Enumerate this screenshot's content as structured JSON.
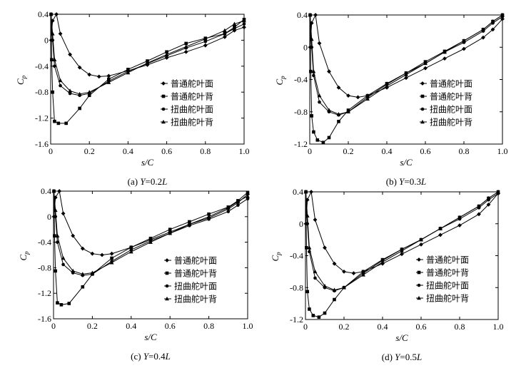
{
  "chart_data": [
    {
      "type": "line",
      "caption": "(a) Y=0.2L",
      "xlabel": "s/C",
      "ylabel": "C_p",
      "xlim": [
        0,
        1
      ],
      "ylim": [
        -1.6,
        0.4
      ],
      "xticks": [
        "0",
        "0.2",
        "0.4",
        "0.6",
        "0.8",
        "1.0"
      ],
      "yticks": [
        "0.4",
        "0",
        "-0.4",
        "-0.8",
        "-1.2",
        "-1.6"
      ],
      "legend_position": "center-right",
      "series": [
        {
          "name": "普通舵叶面",
          "marker": "diamond",
          "x": [
            0.002,
            0.01,
            0.03,
            0.05,
            0.1,
            0.15,
            0.2,
            0.25,
            0.3,
            0.4,
            0.5,
            0.6,
            0.7,
            0.8,
            0.9,
            0.95,
            1.0
          ],
          "y": [
            0.0,
            0.3,
            0.4,
            0.1,
            -0.22,
            -0.42,
            -0.53,
            -0.56,
            -0.55,
            -0.47,
            -0.38,
            -0.27,
            -0.18,
            -0.08,
            0.05,
            0.15,
            0.2
          ]
        },
        {
          "name": "普通舵叶背",
          "marker": "square",
          "x": [
            0.002,
            0.005,
            0.01,
            0.02,
            0.04,
            0.08,
            0.15,
            0.2,
            0.3,
            0.4,
            0.5,
            0.6,
            0.7,
            0.8,
            0.9,
            0.95,
            1.0
          ],
          "y": [
            0.4,
            -0.3,
            -0.8,
            -1.25,
            -1.28,
            -1.28,
            -1.05,
            -0.85,
            -0.6,
            -0.45,
            -0.32,
            -0.18,
            -0.05,
            0.03,
            0.1,
            0.2,
            0.32
          ]
        },
        {
          "name": "扭曲舵叶面",
          "marker": "circle",
          "x": [
            0.002,
            0.01,
            0.02,
            0.05,
            0.1,
            0.15,
            0.2,
            0.3,
            0.4,
            0.5,
            0.6,
            0.7,
            0.8,
            0.9,
            0.95,
            1.0
          ],
          "y": [
            0.4,
            0.0,
            -0.4,
            -0.7,
            -0.82,
            -0.85,
            -0.82,
            -0.63,
            -0.48,
            -0.36,
            -0.24,
            -0.12,
            -0.02,
            0.1,
            0.18,
            0.25
          ]
        },
        {
          "name": "扭曲舵叶背",
          "marker": "triangle",
          "x": [
            0.002,
            0.01,
            0.02,
            0.05,
            0.1,
            0.15,
            0.2,
            0.3,
            0.4,
            0.5,
            0.6,
            0.7,
            0.8,
            0.9,
            0.95,
            1.0
          ],
          "y": [
            0.4,
            0.1,
            -0.3,
            -0.62,
            -0.78,
            -0.83,
            -0.8,
            -0.65,
            -0.5,
            -0.35,
            -0.22,
            -0.1,
            0.02,
            0.15,
            0.25,
            0.3
          ]
        }
      ]
    },
    {
      "type": "line",
      "caption": "(b) Y=0.3L",
      "xlabel": "s/C",
      "ylabel": "C_p",
      "xlim": [
        0,
        1
      ],
      "ylim": [
        -1.2,
        0.4
      ],
      "xticks": [
        "0",
        "0.2",
        "0.4",
        "0.6",
        "0.8",
        "1.0"
      ],
      "yticks": [
        "0.4",
        "0",
        "-0.4",
        "-0.8",
        "-1.2"
      ],
      "legend_position": "center-right",
      "series": [
        {
          "name": "普通舵叶面",
          "marker": "diamond",
          "x": [
            0.002,
            0.01,
            0.03,
            0.05,
            0.1,
            0.15,
            0.2,
            0.25,
            0.3,
            0.4,
            0.5,
            0.6,
            0.7,
            0.8,
            0.9,
            0.95,
            1.0
          ],
          "y": [
            0.0,
            0.3,
            0.4,
            0.05,
            -0.3,
            -0.5,
            -0.6,
            -0.62,
            -0.6,
            -0.5,
            -0.38,
            -0.26,
            -0.14,
            -0.02,
            0.12,
            0.22,
            0.35
          ]
        },
        {
          "name": "普通舵叶背",
          "marker": "square",
          "x": [
            0.002,
            0.005,
            0.01,
            0.02,
            0.04,
            0.07,
            0.1,
            0.15,
            0.2,
            0.3,
            0.4,
            0.5,
            0.6,
            0.7,
            0.8,
            0.9,
            0.95,
            1.0
          ],
          "y": [
            0.4,
            -0.3,
            -0.85,
            -1.05,
            -1.15,
            -1.18,
            -1.12,
            -0.92,
            -0.78,
            -0.6,
            -0.45,
            -0.32,
            -0.18,
            -0.05,
            0.08,
            0.22,
            0.32,
            0.4
          ]
        },
        {
          "name": "扭曲舵叶面",
          "marker": "circle",
          "x": [
            0.002,
            0.01,
            0.02,
            0.05,
            0.1,
            0.15,
            0.2,
            0.3,
            0.4,
            0.5,
            0.6,
            0.7,
            0.8,
            0.9,
            0.95,
            1.0
          ],
          "y": [
            0.4,
            0.0,
            -0.35,
            -0.68,
            -0.8,
            -0.84,
            -0.8,
            -0.62,
            -0.46,
            -0.32,
            -0.2,
            -0.06,
            0.06,
            0.2,
            0.3,
            0.38
          ]
        },
        {
          "name": "扭曲舵叶背",
          "marker": "triangle",
          "x": [
            0.002,
            0.01,
            0.02,
            0.05,
            0.1,
            0.15,
            0.2,
            0.3,
            0.4,
            0.5,
            0.6,
            0.7,
            0.8,
            0.9,
            0.95,
            1.0
          ],
          "y": [
            0.4,
            0.1,
            -0.3,
            -0.6,
            -0.78,
            -0.83,
            -0.8,
            -0.64,
            -0.48,
            -0.34,
            -0.2,
            -0.06,
            0.08,
            0.22,
            0.32,
            0.4
          ]
        }
      ]
    },
    {
      "type": "line",
      "caption": "(c) Y=0.4L",
      "xlabel": "s/C",
      "ylabel": "C_p",
      "xlim": [
        0,
        1
      ],
      "ylim": [
        -1.6,
        0.4
      ],
      "xticks": [
        "0",
        "0.2",
        "0.4",
        "0.6",
        "0.8",
        "1.0"
      ],
      "yticks": [
        "0.4",
        "0",
        "-0.4",
        "-0.8",
        "-1.2",
        "-1.6"
      ],
      "legend_position": "center-right",
      "series": [
        {
          "name": "普通舵叶面",
          "marker": "diamond",
          "x": [
            0.002,
            0.01,
            0.03,
            0.05,
            0.1,
            0.15,
            0.2,
            0.25,
            0.3,
            0.4,
            0.5,
            0.6,
            0.7,
            0.8,
            0.9,
            0.95,
            1.0
          ],
          "y": [
            0.0,
            0.3,
            0.4,
            0.05,
            -0.3,
            -0.5,
            -0.58,
            -0.6,
            -0.58,
            -0.48,
            -0.36,
            -0.24,
            -0.12,
            -0.02,
            0.12,
            0.22,
            0.35
          ]
        },
        {
          "name": "普通舵叶背",
          "marker": "square",
          "x": [
            0.002,
            0.005,
            0.01,
            0.02,
            0.04,
            0.08,
            0.15,
            0.2,
            0.3,
            0.4,
            0.5,
            0.6,
            0.7,
            0.8,
            0.9,
            0.95,
            1.0
          ],
          "y": [
            0.4,
            -0.3,
            -0.85,
            -1.35,
            -1.38,
            -1.36,
            -1.1,
            -0.9,
            -0.65,
            -0.48,
            -0.34,
            -0.2,
            -0.08,
            0.04,
            0.15,
            0.25,
            0.38
          ]
        },
        {
          "name": "扭曲舵叶面",
          "marker": "circle",
          "x": [
            0.002,
            0.01,
            0.02,
            0.05,
            0.1,
            0.15,
            0.2,
            0.3,
            0.4,
            0.5,
            0.6,
            0.7,
            0.8,
            0.9,
            0.95,
            1.0
          ],
          "y": [
            0.4,
            0.0,
            -0.4,
            -0.75,
            -0.88,
            -0.92,
            -0.9,
            -0.7,
            -0.52,
            -0.38,
            -0.26,
            -0.14,
            -0.04,
            0.08,
            0.18,
            0.28
          ]
        },
        {
          "name": "扭曲舵叶背",
          "marker": "triangle",
          "x": [
            0.002,
            0.01,
            0.02,
            0.05,
            0.1,
            0.15,
            0.2,
            0.3,
            0.4,
            0.5,
            0.6,
            0.7,
            0.8,
            0.9,
            0.95,
            1.0
          ],
          "y": [
            0.4,
            0.1,
            -0.3,
            -0.65,
            -0.85,
            -0.9,
            -0.88,
            -0.72,
            -0.55,
            -0.4,
            -0.26,
            -0.12,
            0.0,
            0.14,
            0.24,
            0.32
          ]
        }
      ]
    },
    {
      "type": "line",
      "caption": "(d) Y=0.5L",
      "xlabel": "s/C",
      "ylabel": "C_p",
      "xlim": [
        0,
        1
      ],
      "ylim": [
        -1.2,
        0.4
      ],
      "xticks": [
        "0",
        "0.2",
        "0.4",
        "0.6",
        "0.8",
        "1.0"
      ],
      "yticks": [
        "0.4",
        "0",
        "-0.4",
        "-0.8",
        "-1.2"
      ],
      "legend_position": "center-right",
      "series": [
        {
          "name": "普通舵叶面",
          "marker": "diamond",
          "x": [
            0.002,
            0.01,
            0.03,
            0.05,
            0.1,
            0.15,
            0.2,
            0.25,
            0.3,
            0.4,
            0.5,
            0.6,
            0.7,
            0.8,
            0.9,
            0.95,
            1.0
          ],
          "y": [
            0.0,
            0.3,
            0.4,
            0.05,
            -0.3,
            -0.5,
            -0.6,
            -0.62,
            -0.6,
            -0.5,
            -0.38,
            -0.26,
            -0.14,
            -0.02,
            0.12,
            0.24,
            0.38
          ]
        },
        {
          "name": "普通舵叶背",
          "marker": "square",
          "x": [
            0.002,
            0.005,
            0.01,
            0.02,
            0.04,
            0.07,
            0.1,
            0.15,
            0.2,
            0.3,
            0.4,
            0.5,
            0.6,
            0.7,
            0.8,
            0.9,
            0.95,
            1.0
          ],
          "y": [
            0.4,
            -0.3,
            -0.85,
            -1.07,
            -1.15,
            -1.17,
            -1.12,
            -0.95,
            -0.8,
            -0.6,
            -0.45,
            -0.32,
            -0.2,
            -0.06,
            0.08,
            0.22,
            0.32,
            0.4
          ]
        },
        {
          "name": "扭曲舵叶面",
          "marker": "circle",
          "x": [
            0.002,
            0.01,
            0.02,
            0.05,
            0.1,
            0.15,
            0.2,
            0.3,
            0.4,
            0.5,
            0.6,
            0.7,
            0.8,
            0.9,
            0.95,
            1.0
          ],
          "y": [
            0.4,
            0.0,
            -0.35,
            -0.68,
            -0.8,
            -0.84,
            -0.8,
            -0.62,
            -0.46,
            -0.32,
            -0.2,
            -0.06,
            0.06,
            0.2,
            0.3,
            0.38
          ]
        },
        {
          "name": "扭曲舵叶背",
          "marker": "triangle",
          "x": [
            0.002,
            0.01,
            0.02,
            0.05,
            0.1,
            0.15,
            0.2,
            0.3,
            0.4,
            0.5,
            0.6,
            0.7,
            0.8,
            0.9,
            0.95,
            1.0
          ],
          "y": [
            0.4,
            0.1,
            -0.3,
            -0.6,
            -0.78,
            -0.83,
            -0.8,
            -0.64,
            -0.48,
            -0.34,
            -0.2,
            -0.06,
            0.08,
            0.22,
            0.32,
            0.4
          ]
        }
      ]
    }
  ]
}
